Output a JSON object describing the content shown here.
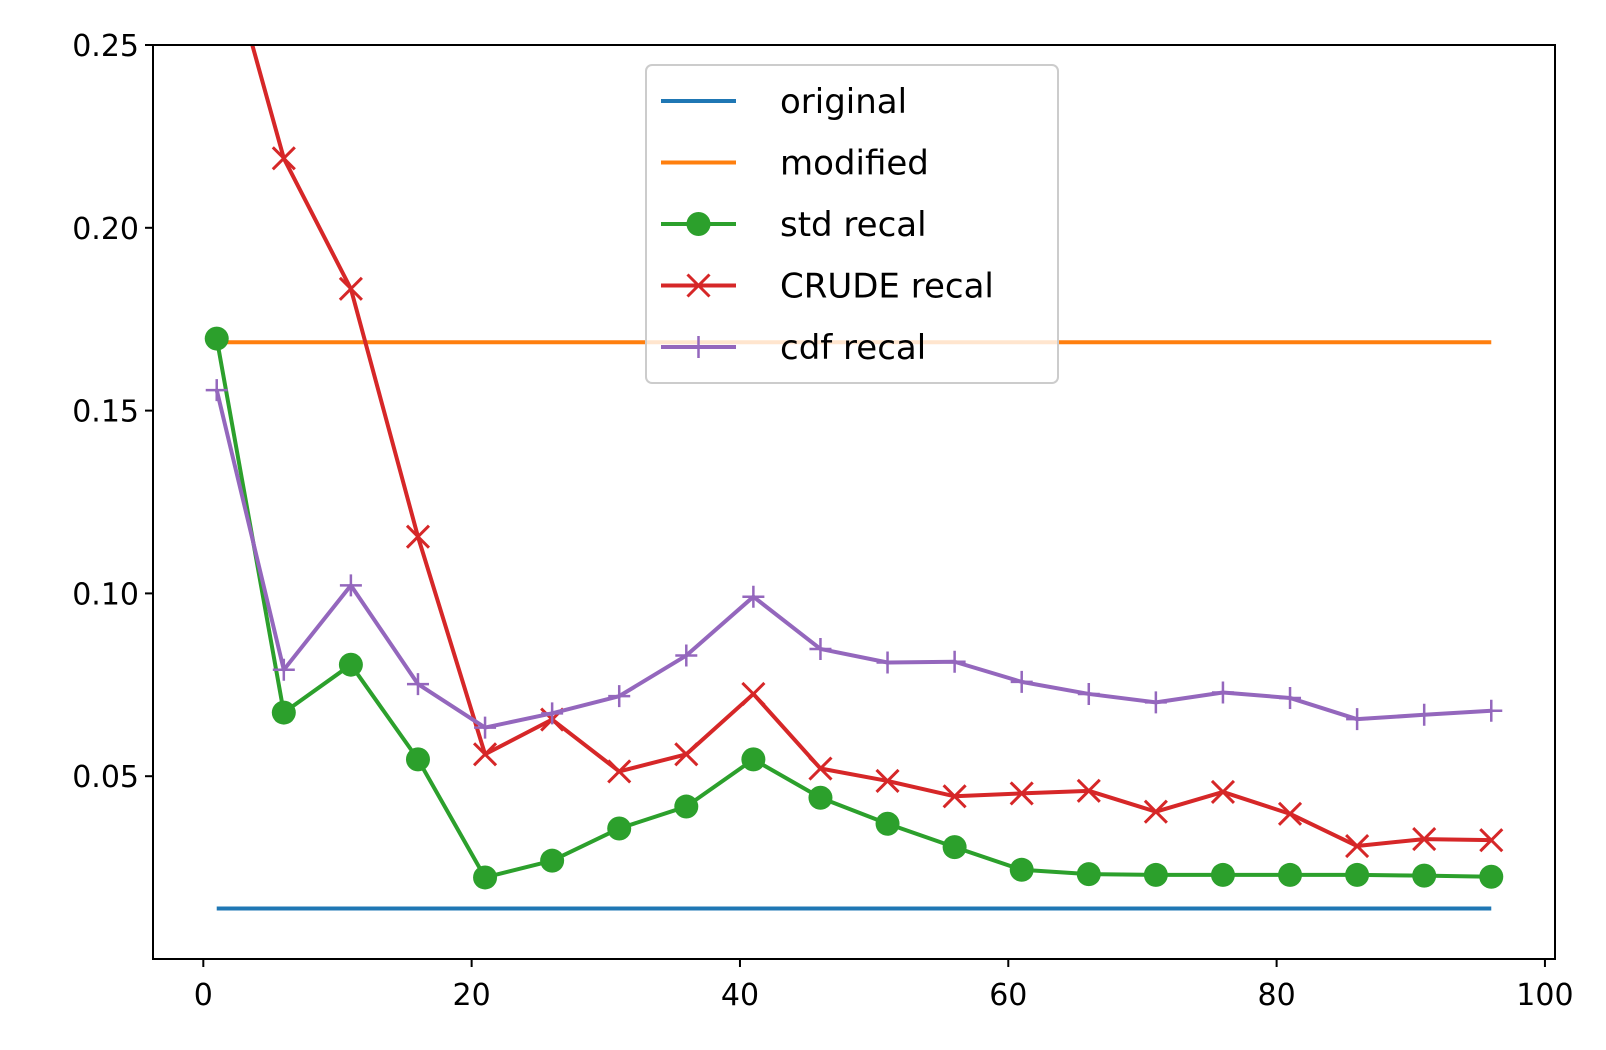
{
  "chart_data": {
    "type": "line",
    "title": "",
    "xlabel": "",
    "ylabel": "",
    "xlim": [
      -3.75,
      100.75
    ],
    "ylim": [
      0.0,
      0.25
    ],
    "xticks": [
      0,
      20,
      40,
      60,
      80,
      100
    ],
    "xtick_labels": [
      "0",
      "20",
      "40",
      "60",
      "80",
      "100"
    ],
    "yticks": [
      0.05,
      0.1,
      0.15,
      0.2,
      0.25
    ],
    "ytick_labels": [
      "0.05",
      "0.10",
      "0.15",
      "0.20",
      "0.25"
    ],
    "grid": false,
    "legend_position": "top-center",
    "x": [
      1,
      6,
      11,
      16,
      21,
      26,
      31,
      36,
      41,
      46,
      51,
      56,
      61,
      66,
      71,
      76,
      81,
      86,
      91,
      96
    ],
    "series": [
      {
        "name": "original",
        "color": "#1f77b4",
        "marker": "none",
        "values": [
          0.0138,
          0.0138,
          0.0138,
          0.0138,
          0.0138,
          0.0138,
          0.0138,
          0.0138,
          0.0138,
          0.0138,
          0.0138,
          0.0138,
          0.0138,
          0.0138,
          0.0138,
          0.0138,
          0.0138,
          0.0138,
          0.0138,
          0.0138
        ]
      },
      {
        "name": "modified",
        "color": "#ff7f0e",
        "marker": "none",
        "values": [
          0.1687,
          0.1687,
          0.1687,
          0.1687,
          0.1687,
          0.1687,
          0.1687,
          0.1687,
          0.1687,
          0.1687,
          0.1687,
          0.1687,
          0.1687,
          0.1687,
          0.1687,
          0.1687,
          0.1687,
          0.1687,
          0.1687,
          0.1687
        ]
      },
      {
        "name": "std recal",
        "color": "#2ca02c",
        "marker": "circle",
        "values": [
          0.1697,
          0.0674,
          0.0805,
          0.0546,
          0.0223,
          0.0269,
          0.0357,
          0.0417,
          0.0546,
          0.0441,
          0.037,
          0.0306,
          0.0244,
          0.0232,
          0.023,
          0.023,
          0.023,
          0.023,
          0.0228,
          0.0225
        ]
      },
      {
        "name": "CRUDE recal",
        "color": "#d62728",
        "marker": "x",
        "values": [
          0.285,
          0.219,
          0.1833,
          0.1155,
          0.056,
          0.0655,
          0.0513,
          0.056,
          0.0725,
          0.0521,
          0.0487,
          0.0445,
          0.0453,
          0.046,
          0.0403,
          0.0457,
          0.0397,
          0.0309,
          0.0328,
          0.0325
        ]
      },
      {
        "name": "cdf recal",
        "color": "#9467bd",
        "marker": "plus",
        "values": [
          0.1556,
          0.0791,
          0.1022,
          0.0752,
          0.0633,
          0.0672,
          0.0719,
          0.083,
          0.0991,
          0.0848,
          0.0811,
          0.0813,
          0.0758,
          0.0725,
          0.0702,
          0.0729,
          0.0714,
          0.0656,
          0.0668,
          0.0679
        ]
      }
    ]
  }
}
